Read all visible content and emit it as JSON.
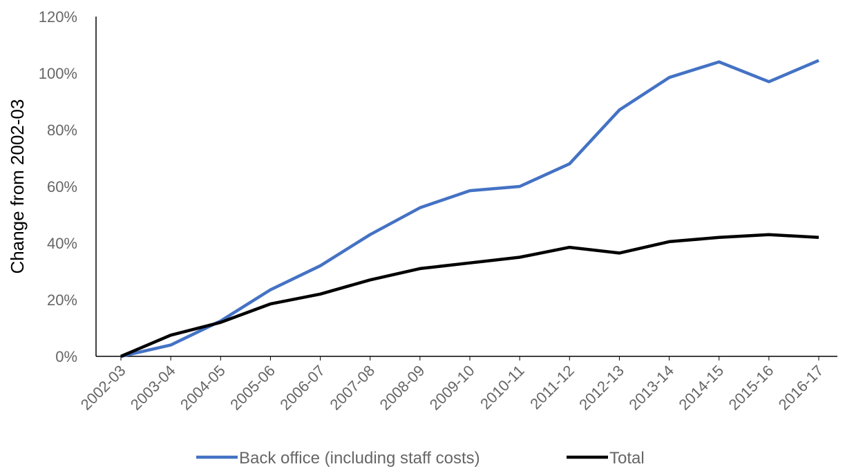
{
  "chart_data": {
    "type": "line",
    "title": "",
    "xlabel": "",
    "ylabel": "Change from 2002-03",
    "ylim": [
      0,
      120
    ],
    "y_unit": "%",
    "y_ticks": [
      0,
      20,
      40,
      60,
      80,
      100,
      120
    ],
    "y_tick_labels": [
      "0%",
      "20%",
      "40%",
      "60%",
      "80%",
      "100%",
      "120%"
    ],
    "grid": false,
    "legend_position": "bottom",
    "categories": [
      "2002-03",
      "2003-04",
      "2004-05",
      "2005-06",
      "2006-07",
      "2007-08",
      "2008-09",
      "2009-10",
      "2010-11",
      "2011-12",
      "2012-13",
      "2013-14",
      "2014-15",
      "2015-16",
      "2016-17"
    ],
    "series": [
      {
        "name": "Back office (including staff costs)",
        "color": "#4472C4",
        "values": [
          0,
          4,
          12.5,
          23.5,
          32,
          43,
          52.5,
          58.5,
          60,
          68,
          87,
          98.5,
          104,
          97,
          104.5
        ]
      },
      {
        "name": "Total",
        "color": "#000000",
        "values": [
          0,
          7.5,
          12,
          18.5,
          22,
          27,
          31,
          33,
          35,
          38.5,
          36.5,
          40.5,
          42,
          43,
          42
        ]
      }
    ]
  }
}
